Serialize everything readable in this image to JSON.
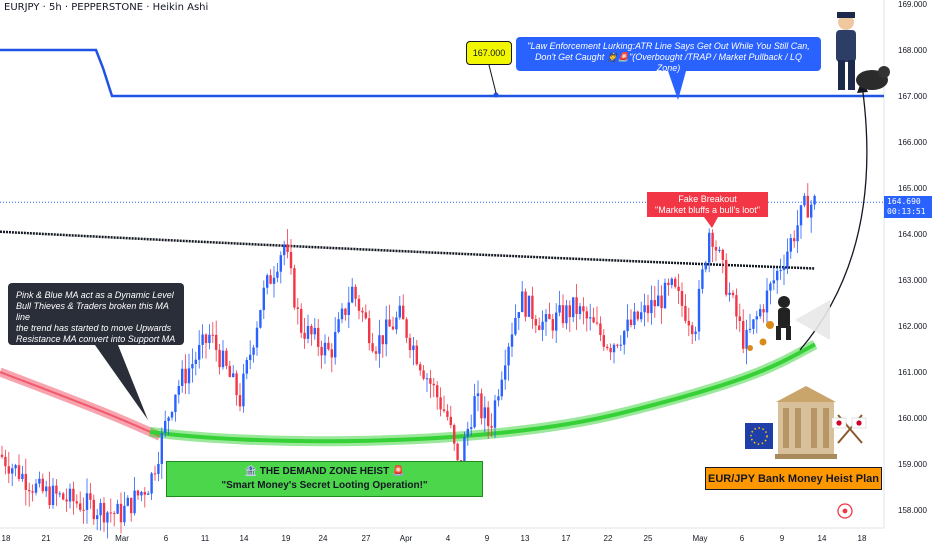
{
  "header": {
    "symbol_title": "EURJPY · 5h · PEPPERSTONE · Heikin Ashi"
  },
  "price_axis": {
    "labels": [
      "169.000",
      "168.000",
      "167.000",
      "166.000",
      "165.000",
      "164.000",
      "163.000",
      "162.000",
      "161.000",
      "160.000",
      "159.000",
      "158.000"
    ],
    "current_price": "164.690",
    "countdown": "00:13:51"
  },
  "time_axis": {
    "labels": [
      "18",
      "21",
      "26",
      "Mar",
      "6",
      "11",
      "14",
      "19",
      "24",
      "27",
      "Apr",
      "4",
      "9",
      "13",
      "17",
      "22",
      "25",
      "May",
      "6",
      "9",
      "14",
      "18"
    ]
  },
  "annotations": {
    "ma_note": "Pink & Blue MA act as a Dynamic Level\nBull Thieves & Traders broken this MA line\nthe trend has started to move Upwards\nResistance MA convert into Support MA",
    "law_note": "\"Law Enforcement Lurking:ATR Line Says Get Out While You Still Can,\nDon't Get Caught 👮🚨\"(Overbought /TRAP / Market Pullback / LQ Zone)",
    "level_tag": "167.000",
    "fake_breakout": "Fake Breakout\n\"Market bluffs a bull's loot\"",
    "demand_zone": "🏦 THE DEMAND ZONE HEIST 🚨\n\"Smart Money's Secret Looting Operation!\"",
    "plan": "EUR/JPY Bank Money Heist Plan"
  },
  "colors": {
    "bull": "#2962ff",
    "bear": "#f23645",
    "atr_line": "#1e53e5",
    "support_ma": "#36d136",
    "resistance_ma": "#f05a6e",
    "black_ma": "#131722"
  },
  "icons": [
    "eu-flag-icon",
    "japan-flag-icon",
    "bank-building-icon",
    "police-officer-icon",
    "thief-icon",
    "target-icon"
  ],
  "chart_data": {
    "type": "candlestick",
    "ylim": [
      157.7,
      169.2
    ],
    "x_ticks": [
      "18",
      "21",
      "26",
      "Mar",
      "6",
      "11",
      "14",
      "19",
      "24",
      "27",
      "Apr",
      "4",
      "9",
      "13",
      "17",
      "22",
      "25",
      "May",
      "6",
      "9",
      "14",
      "18"
    ],
    "atr_line_level": 167.0,
    "atr_line_prior_level": 168.0,
    "current_price": 164.69,
    "key_points": [
      {
        "date": "Mar 3",
        "price": 157.9
      },
      {
        "date": "Mar 19",
        "price": 163.8
      },
      {
        "date": "Apr 7",
        "price": 158.2
      },
      {
        "date": "May 2",
        "price": 164.2
      },
      {
        "date": "May 6",
        "price": 161.6
      },
      {
        "date": "May 12",
        "price": 164.8
      }
    ],
    "black_ma": {
      "start": 164.05,
      "end": 163.25
    },
    "support_ma": {
      "start": 161.3,
      "min": 159.4,
      "end": 161.6
    }
  }
}
